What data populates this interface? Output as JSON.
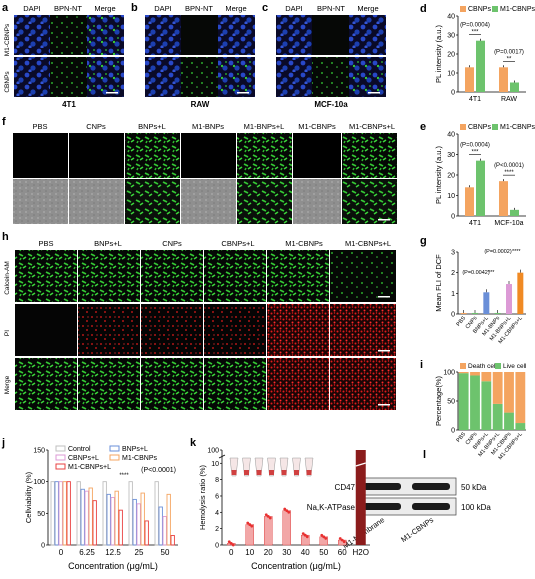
{
  "panel_a": {
    "letter": "a",
    "cols": [
      "DAPI",
      "BPN-NT",
      "Merge"
    ],
    "rows": [
      "M1-CBNPs",
      "CBNPs"
    ],
    "cell": "4T1"
  },
  "panel_b": {
    "letter": "b",
    "cols": [
      "DAPI",
      "BPN-NT",
      "Merge"
    ],
    "cell": "RAW"
  },
  "panel_c": {
    "letter": "c",
    "cols": [
      "DAPI",
      "BPN-NT",
      "Merge"
    ],
    "cell": "MCF-10a"
  },
  "panel_f": {
    "letter": "f",
    "cols": [
      "PBS",
      "CNPs",
      "BNPs+L",
      "M1-BNPs",
      "M1-BNPs+L",
      "M1-CBNPs",
      "M1-CBNPs+L"
    ]
  },
  "panel_h": {
    "letter": "h",
    "cols": [
      "PBS",
      "BNPs+L",
      "CNPs",
      "CBNPs+L",
      "M1-CBNPs",
      "M1-CBNPs+L"
    ],
    "rows": [
      "Calcein-AM",
      "PI",
      "Merge"
    ]
  },
  "panel_l": {
    "letter": "l",
    "rows": [
      "CD47",
      "Na,K-ATPase"
    ],
    "kda": [
      "50 kDa",
      "100 kDa"
    ],
    "lanes": [
      "M1-Membrane",
      "M1-CBNPs"
    ]
  },
  "colors": {
    "orange": "#f4a460",
    "green": "#6dc36d",
    "dapi": "#1c3fb0",
    "fluor": "#34c734",
    "pi": "#e01a1a",
    "blood": "#8b1c1c"
  },
  "chart_data": [
    {
      "id": "d",
      "type": "bar",
      "letter": "d",
      "categories": [
        "4T1",
        "RAW"
      ],
      "series": [
        {
          "name": "CBNPs",
          "values": [
            13,
            13
          ]
        },
        {
          "name": "M1-CBNPs",
          "values": [
            27,
            5
          ]
        }
      ],
      "ylabel": "PL intensity (a.u.)",
      "ylim": [
        0,
        40
      ],
      "yticks": [
        "0",
        "10",
        "20",
        "30",
        "40"
      ],
      "annotations": [
        "(P=0.0004)",
        "***",
        "(P=0.0017)",
        "**"
      ]
    },
    {
      "id": "e",
      "type": "bar",
      "letter": "e",
      "categories": [
        "4T1",
        "MCF-10a"
      ],
      "series": [
        {
          "name": "CBNPs",
          "values": [
            14,
            17
          ]
        },
        {
          "name": "M1-CBNPs",
          "values": [
            27,
            3
          ]
        }
      ],
      "ylabel": "PL intensity (a.u.)",
      "ylim": [
        0,
        40
      ],
      "yticks": [
        "0",
        "10",
        "20",
        "30",
        "40"
      ],
      "annotations": [
        "(P=0.0004)",
        "***",
        "(P<0.0001)",
        "****"
      ]
    },
    {
      "id": "g",
      "type": "bar",
      "letter": "g",
      "categories": [
        "PBS",
        "CNPs",
        "BNPs+L",
        "M1-BNPs",
        "M1-BNPs+L",
        "M1-CBNPs+L"
      ],
      "values": [
        0.05,
        0.05,
        1.05,
        0.05,
        1.45,
        2.0
      ],
      "colors": [
        "#f4a460",
        "#6dc36d",
        "#6a8fd8",
        "#6dc36d",
        "#dc9ad6",
        "#f08a24"
      ],
      "ylabel": "Mean FLI of DCF",
      "ylim": [
        0,
        3
      ],
      "yticks": [
        "0",
        "1",
        "2",
        "3"
      ],
      "annotations": [
        "(P=0.0042)",
        "***",
        "(P=0.0002)",
        "****"
      ]
    },
    {
      "id": "i",
      "type": "bar",
      "letter": "i",
      "stacked": true,
      "categories": [
        "PBS",
        "CNPs",
        "BNPs+L",
        "M1-BNPs+L",
        "M1-CBNPs",
        "M1-CBNPs+L"
      ],
      "series": [
        {
          "name": "Death cell",
          "values": [
            2,
            6,
            16,
            55,
            70,
            88
          ]
        },
        {
          "name": "Live cell",
          "values": [
            98,
            94,
            84,
            45,
            30,
            12
          ]
        }
      ],
      "ylabel": "Percentage(%)",
      "ylim": [
        0,
        100
      ],
      "yticks": [
        "0",
        "50",
        "100"
      ]
    },
    {
      "id": "j",
      "type": "bar",
      "letter": "j",
      "categories": [
        "0",
        "6.25",
        "12.5",
        "25",
        "50"
      ],
      "series": [
        {
          "name": "Control",
          "values": [
            100,
            100,
            100,
            100,
            100
          ]
        },
        {
          "name": "BNPs+L",
          "values": [
            100,
            88,
            80,
            72,
            60
          ]
        },
        {
          "name": "CBNPs+L",
          "values": [
            100,
            85,
            75,
            65,
            45
          ]
        },
        {
          "name": "M1-CBNPs",
          "values": [
            100,
            90,
            85,
            82,
            80
          ]
        },
        {
          "name": "M1-CBNPs+L",
          "values": [
            100,
            70,
            55,
            38,
            15
          ]
        }
      ],
      "colors": [
        "#bfbfbf",
        "#6a8fd8",
        "#dc9ad6",
        "#f4a460",
        "#e84040"
      ],
      "xlabel": "Concentration (μg/mL)",
      "ylabel": "Cellviability (%)",
      "ylim": [
        0,
        150
      ],
      "yticks": [
        "0",
        "50",
        "100",
        "150"
      ],
      "annotations": [
        "(P<0.0001)",
        "****"
      ]
    },
    {
      "id": "k",
      "type": "scatter",
      "letter": "k",
      "categories": [
        "0",
        "10",
        "20",
        "30",
        "40",
        "50",
        "60",
        "H2O"
      ],
      "values": [
        0.2,
        2.5,
        3.5,
        4.2,
        1.2,
        1.0,
        0.6,
        100
      ],
      "xlabel": "Concentration (μg/mL)",
      "ylabel": "Hemolysis ratio (%)",
      "yticks": [
        "0",
        "2",
        "4",
        "6",
        "8",
        "10",
        "100"
      ]
    }
  ]
}
